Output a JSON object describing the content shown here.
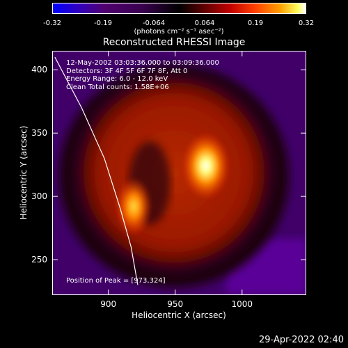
{
  "colorbar": {
    "ticks": [
      "-0.32",
      "-0.19",
      "-0.064",
      "0.064",
      "0.19",
      "0.32"
    ],
    "unit_label": "(photons cm⁻² s⁻¹ asec⁻²)"
  },
  "title": "Reconstructed RHESSI Image",
  "info_lines": [
    "12-May-2002 03:03:36.000 to 03:09:36.000",
    "Detectors: 3F 4F 5F 6F 7F 8F, Att 0",
    "Energy Range: 6.0 - 12.0 keV",
    "Clean     Total counts: 1.58E+06"
  ],
  "peak_text": "Position of Peak = [973,324]",
  "timestamp": "29-Apr-2022 02:40",
  "chart_data": {
    "type": "heatmap",
    "title": "Reconstructed RHESSI Image",
    "xlabel": "Heliocentric X (arcsec)",
    "ylabel": "Heliocentric Y (arcsec)",
    "xlim": [
      858,
      1048
    ],
    "ylim": [
      222,
      415
    ],
    "xticks": [
      900,
      950,
      1000
    ],
    "yticks": [
      250,
      300,
      350,
      400
    ],
    "colorbar_range": [
      -0.32,
      0.32
    ],
    "colorbar_ticks": [
      -0.32,
      -0.19,
      -0.064,
      0.064,
      0.19,
      0.32
    ],
    "peak_position": [
      973,
      324
    ],
    "sources": [
      {
        "x": 973,
        "y": 324,
        "intensity": 0.32
      },
      {
        "x": 919,
        "y": 292,
        "intensity": 0.22
      }
    ],
    "limb_curve": [
      [
        860,
        410
      ],
      [
        880,
        370
      ],
      [
        897,
        330
      ],
      [
        909,
        290
      ],
      [
        917,
        260
      ],
      [
        922,
        230
      ]
    ]
  }
}
